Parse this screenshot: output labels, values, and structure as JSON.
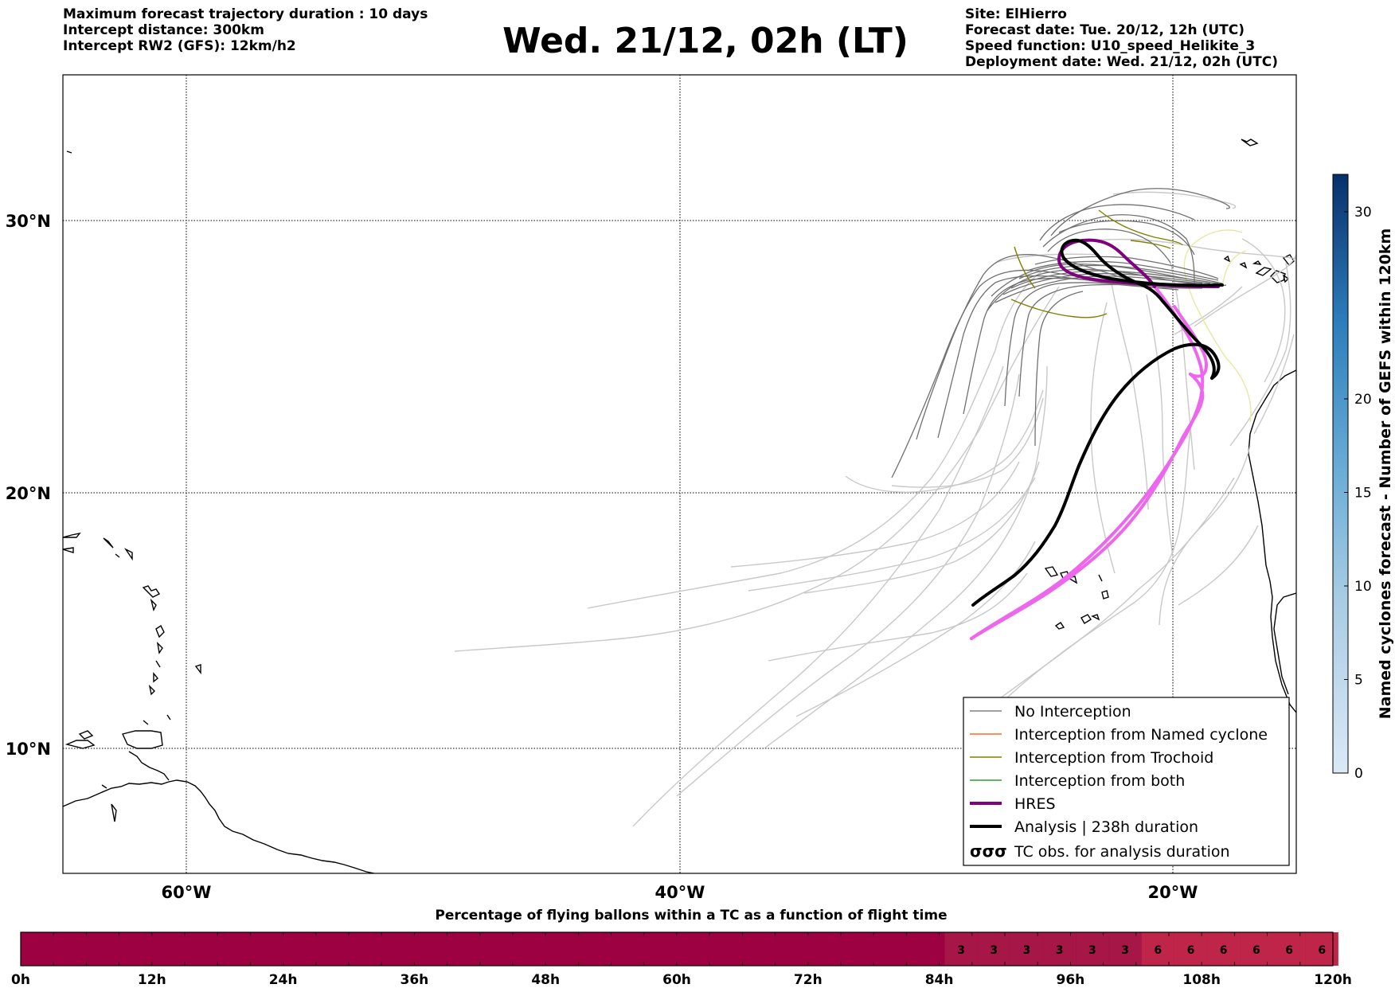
{
  "header_left": {
    "line1": "Maximum forecast trajectory duration : 10 days",
    "line2": "Intercept distance: 300km",
    "line3": "Intercept RW2 (GFS):  12km/h2"
  },
  "title": "Wed. 21/12, 02h (LT)",
  "header_right": {
    "line1": "Site: ElHierro",
    "line2": "Forecast date: Tue. 20/12, 12h (UTC)",
    "line3": "Speed function: U10_speed_Helikite_3",
    "line4": "Deployment date: Wed. 21/12, 02h (UTC)"
  },
  "map": {
    "lat_labels": [
      "30°N",
      "20°N",
      "10°N"
    ],
    "lon_labels": [
      "60°W",
      "40°W",
      "20°W"
    ],
    "hres_color": "#800080",
    "analysis_color": "#000000",
    "gefs_color": "#bdbdbd",
    "no_interception_color": "#6e6e6e",
    "trochoid_color": "#808000",
    "gfs_interception_color": "#e6e68a"
  },
  "legend": {
    "no_interception": "No Interception",
    "named_cyclone": "Interception from Named cyclone",
    "trochoid": "Interception from Trochoid",
    "both": "Interception from both",
    "hres": "HRES",
    "analysis": "Analysis | 238h duration",
    "tc_obs": "TC obs. for analysis duration",
    "tc_obs_symbol": "σσσ",
    "colors": {
      "no_interception": "#808080",
      "named_cyclone": "#ff6a1f",
      "trochoid": "#808000",
      "both": "#2f9a2f",
      "hres": "#800080",
      "analysis": "#000000"
    }
  },
  "colorbar_right": {
    "label": "Named cyclones forecast - Number of GEFS within 120km",
    "ticks": [
      "0",
      "5",
      "10",
      "15",
      "20",
      "30"
    ],
    "min": 0,
    "max": 32
  },
  "bottom_bar": {
    "title": "Percentage of flying ballons within a TC as a function of flight time",
    "tick_labels": [
      "0h",
      "12h",
      "24h",
      "36h",
      "48h",
      "60h",
      "72h",
      "84h",
      "96h",
      "108h",
      "120h"
    ],
    "hours": [
      86,
      89,
      92,
      95,
      98,
      101,
      104,
      107,
      110,
      113,
      116,
      119
    ],
    "percentages": [
      "3",
      "3",
      "3",
      "3",
      "3",
      "3",
      "6",
      "6",
      "6",
      "6",
      "6",
      "6"
    ],
    "base_color": "#9e0142",
    "color_3": "#a61646",
    "color_6": "#bf2549"
  }
}
